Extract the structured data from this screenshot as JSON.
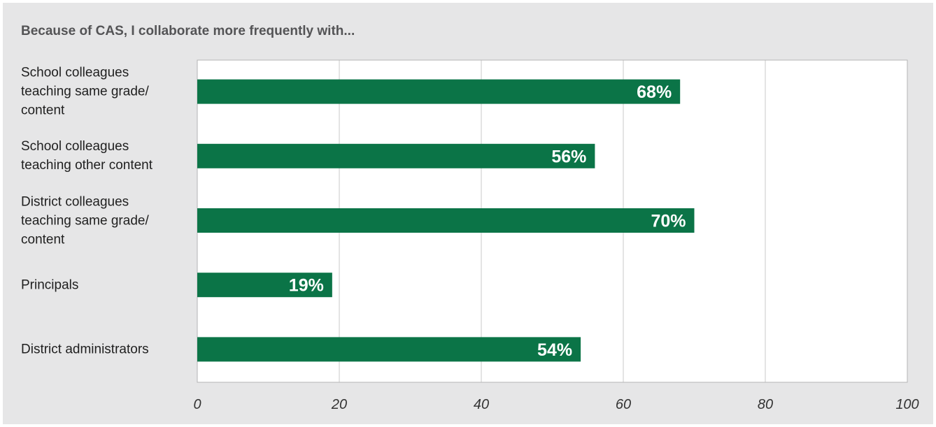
{
  "chart_data": {
    "type": "bar",
    "orientation": "horizontal",
    "title": "Because of CAS, I collaborate more frequently with...",
    "categories": [
      "School colleagues teaching same grade/ content",
      "School colleagues teaching other content",
      "District colleagues teaching same grade/ content",
      "Principals",
      "District administrators"
    ],
    "category_lines": [
      [
        "School colleagues",
        "teaching same grade/",
        "content"
      ],
      [
        "School colleagues",
        "teaching other content"
      ],
      [
        "District colleagues",
        "teaching same grade/",
        "content"
      ],
      [
        "Principals"
      ],
      [
        "District administrators"
      ]
    ],
    "values": [
      68,
      56,
      70,
      19,
      54
    ],
    "value_labels": [
      "68%",
      "56%",
      "70%",
      "19%",
      "54%"
    ],
    "xlim": [
      0,
      100
    ],
    "xticks": [
      0,
      20,
      40,
      60,
      80,
      100
    ],
    "xtick_labels": [
      "0",
      "20",
      "40",
      "60",
      "80",
      "100"
    ],
    "xlabel": "",
    "ylabel": "",
    "grid": true,
    "legend": "none",
    "colors": {
      "bar": "#0b7447",
      "background": "#e6e6e7",
      "plot_area": "#ffffff",
      "grid": "#c8c8c8",
      "value_label": "#ffffff",
      "title": "#545456"
    }
  }
}
